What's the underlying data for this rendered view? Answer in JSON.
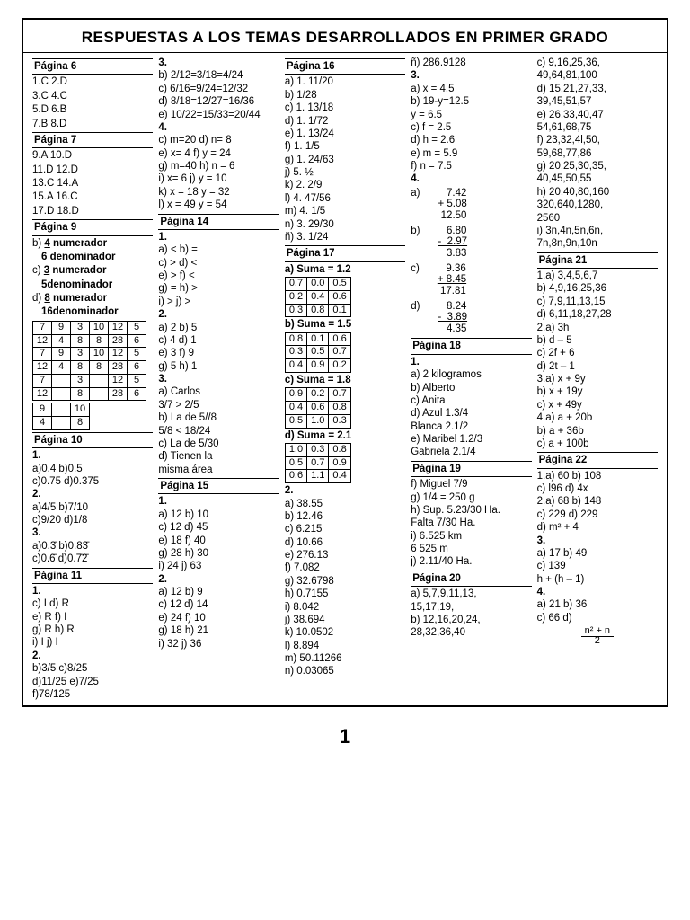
{
  "title": "RESPUESTAS A LOS TEMAS DESARROLLADOS EN PRIMER GRADO",
  "page_number": "1",
  "col1": {
    "p6_hd": "Página 6",
    "p6": [
      "1.C    2.D",
      "3.C    4.C",
      "5.D    6.B",
      "7.B    8.D"
    ],
    "p7_hd": "Página 7",
    "p7": [
      "9.A   10.D",
      "11.D 12.D",
      "13.C 14.A",
      "15.A 16.C",
      "17.D 18.D"
    ],
    "p9_hd": "Página 9",
    "p9_b1": "b)  ",
    "p9_b2": "4",
    "p9_b3": " numerador",
    "p9_b4": "6 denominador",
    "p9_c1": "c)  ",
    "p9_c2": "3",
    "p9_c3": " numerador",
    "p9_c4": "5denominador",
    "p9_d1": "d)  ",
    "p9_d2": "8",
    "p9_d3": " numerador",
    "p9_d4": "16denominador",
    "p9_grid": [
      [
        "7",
        "9",
        "3",
        "10",
        "12",
        "5"
      ],
      [
        "12",
        "4",
        "8",
        "8",
        "28",
        "6"
      ],
      [
        "7",
        "9",
        "3",
        "10",
        "12",
        "5"
      ],
      [
        "12",
        "4",
        "8",
        "8",
        "28",
        "6"
      ],
      [
        "7",
        "",
        "3",
        "",
        "12",
        "5"
      ],
      [
        "12",
        "",
        "8",
        "",
        "28",
        "6"
      ]
    ],
    "p9_mini": [
      [
        "9",
        "",
        "10"
      ],
      [
        "4",
        "",
        "8"
      ]
    ],
    "p10_hd": "Página 10",
    "p10": [
      "1.",
      "a)0.4    b)0.5",
      "c)0.75  d)0.375",
      "2.",
      "a)4/5    b)7/10",
      "c)9/20  d)1/8",
      "3.",
      "a)0.3̄    b)0.83̄",
      "c)0.6̄   d)0.7̄2̄"
    ],
    "p11_hd": "Página 11",
    "p11": [
      "1.",
      "c) I     d) R",
      "e) R    f) I",
      "g) R   h) R",
      "i) I     j) I",
      "2.",
      "b)3/5     c)8/25",
      "d)11/25 e)7/25",
      "f)78/125"
    ]
  },
  "col2": {
    "s3": [
      "3.",
      "b) 2/12=3/18=4/24",
      "c) 6/16=9/24=12/32",
      "d) 8/18=12/27=16/36",
      "e) 10/22=15/33=20/44",
      "4.",
      "c) m=20   d) n=  8",
      "e) x=  4    f) y = 24",
      "g) m=40  h) n = 6",
      "i)  x=  6    j) y = 10",
      "k) x = 18    y = 32",
      "l)  x = 49    y = 54"
    ],
    "p14_hd": "Página 14",
    "p14a": [
      "1.",
      "a) <      b) =",
      "c) >      d) <",
      "e) >      f) <",
      "g) =      h) >",
      "i) >       j) >",
      "2.",
      "a) 2      b) 5",
      "c) 4      d) 1",
      "e) 3      f) 9",
      "g) 5      h) 1",
      "3.",
      "a) Carlos",
      "3/7 > 2/5",
      "b) La de 5//8",
      "5/8 < 18/24",
      "c) La de 5/30",
      "d) Tienen la",
      "misma área"
    ],
    "p15_hd": "Página 15",
    "p15": [
      "1.",
      "a) 12     b) 10",
      "c) 12     d) 45",
      "e) 18     f) 40",
      "g) 28    h) 30",
      "i) 24      j) 63",
      "2.",
      "a) 12     b)   9",
      "c) 12     d) 14",
      "e) 24     f) 10",
      "g) 18    h) 21",
      "i)  32     j) 36"
    ]
  },
  "col3": {
    "p16_hd": "Página 16",
    "p16": [
      "a) 1. 11/20",
      "b) 1/28",
      "c) 1. 13/18",
      "d) 1. 1/72",
      "e) 1. 13/24",
      "f) 1. 1/5",
      "g) 1. 24/63",
      "j) 5. ½",
      "k) 2. 2/9",
      "l) 4. 47/56",
      "m) 4. 1/5",
      "n) 3. 29/30",
      "ñ) 3. 1/24"
    ],
    "p17_hd": "Página 17",
    "p17_a": "a) Suma = 1.2",
    "p17_a_t": [
      [
        "0.7",
        "0.0",
        "0.5"
      ],
      [
        "0.2",
        "0.4",
        "0.6"
      ],
      [
        "0.3",
        "0.8",
        "0.1"
      ]
    ],
    "p17_b": "b) Suma = 1.5",
    "p17_b_t": [
      [
        "0.8",
        "0.1",
        "0.6"
      ],
      [
        "0.3",
        "0.5",
        "0.7"
      ],
      [
        "0.4",
        "0.9",
        "0.2"
      ]
    ],
    "p17_c": "c) Suma = 1.8",
    "p17_c_t": [
      [
        "0.9",
        "0.2",
        "0.7"
      ],
      [
        "0.4",
        "0.6",
        "0.8"
      ],
      [
        "0.5",
        "1.0",
        "0.3"
      ]
    ],
    "p17_d": "d) Suma = 2.1",
    "p17_d_t": [
      [
        "1.0",
        "0.3",
        "0.8"
      ],
      [
        "0.5",
        "0.7",
        "0.9"
      ],
      [
        "0.6",
        "1.1",
        "0.4"
      ]
    ],
    "p17_2": [
      "2.",
      "a)   38.55",
      "b)   12.46",
      "c)     6.215",
      "d)   10.66",
      "e) 276.13",
      "f)     7.082",
      "g)   32.6798",
      "h)    0.7155",
      "i)     8.042",
      "j)   38.694",
      "k)   10.0502",
      "l)     8.894",
      "m)  50.11266",
      "n)     0.03065"
    ]
  },
  "col4": {
    "top": [
      "ñ) 286.9128",
      "3.",
      "a)  x = 4.5",
      "b) 19-y=12.5",
      "     y = 6.5",
      "c)   f  = 2.5",
      "d)  h = 2.6",
      "e)  m = 5.9",
      "f)    n = 7.5",
      "4."
    ],
    "ar_a": {
      "label": "a)",
      "l1": "   7.42",
      "l2": "+ 5.08",
      "l3": " 12.50"
    },
    "ar_b": {
      "label": "b)",
      "l1": "   6.80",
      "l2": "-  2.97",
      "l3": "   3.83"
    },
    "ar_c": {
      "label": "c)",
      "l1": "   9.36",
      "l2": "+ 8.45",
      "l3": " 17.81"
    },
    "ar_d": {
      "label": "d)",
      "l1": "   8.24",
      "l2": "-  3.89",
      "l3": "   4.35"
    },
    "p18_hd": "Página 18",
    "p18": [
      "1.",
      "a) 2 kilogramos",
      "b) Alberto",
      "c) Anita",
      "d) Azul  1.3/4",
      "Blanca 2.1/2",
      "e) Maribel 1.2/3",
      "Gabriela 2.1/4"
    ],
    "p19_hd": "Página 19",
    "p19": [
      "f) Miguel 7/9",
      "g) 1/4 = 250 g",
      "h) Sup. 5.23/30 Ha.",
      "Falta 7/30 Ha.",
      "i) 6.525 km",
      "    6 525 m",
      "j) 2.11/40 Ha."
    ],
    "p20_hd": "Página 20",
    "p20": [
      "a) 5,7,9,11,13,",
      "15,17,19,",
      "b) 12,16,20,24,",
      "28,32,36,40"
    ]
  },
  "col5": {
    "top": [
      "c) 9,16,25,36,",
      "49,64,81,100",
      "d) 15,21,27,33,",
      "39,45,51,57",
      "e) 26,33,40,47",
      "54,61,68,75",
      "f) 23,32,4l,50,",
      "59,68,77,86",
      "g) 20,25,30,35,",
      "40,45,50,55",
      "h) 20,40,80,160",
      "320,640,1280,",
      "2560",
      "i) 3n,4n,5n,6n,",
      "7n,8n,9n,10n"
    ],
    "p21_hd": "Página 21",
    "p21": [
      "1.a) 3,4,5,6,7",
      "b) 4,9,16,25,36",
      "c) 7,9,11,13,15",
      "d) 6,11,18,27,28",
      "2.a) 3h",
      "b) d – 5",
      "c) 2f + 6",
      "d) 2t – 1",
      "3.a)  x + 9y",
      "   b)  x + 19y",
      "c) x + 49y",
      "4.a) a + 20b",
      "b) a + 36b",
      "c) a + 100b"
    ],
    "p22_hd": "Página 22",
    "p22": [
      "1.a) 60     b) 108",
      "c) l96       d) 4x",
      "2.a) 68     b) 148",
      "c) 229      d) 229",
      "d) m² + 4",
      "",
      "3.",
      "a) 17     b) 49",
      "c) 139",
      "h + (h – 1)",
      "4.",
      "a) 21     b) 36",
      "c) 66     d)"
    ],
    "p22_frac_n": "n² + n",
    "p22_frac_d": "2"
  }
}
